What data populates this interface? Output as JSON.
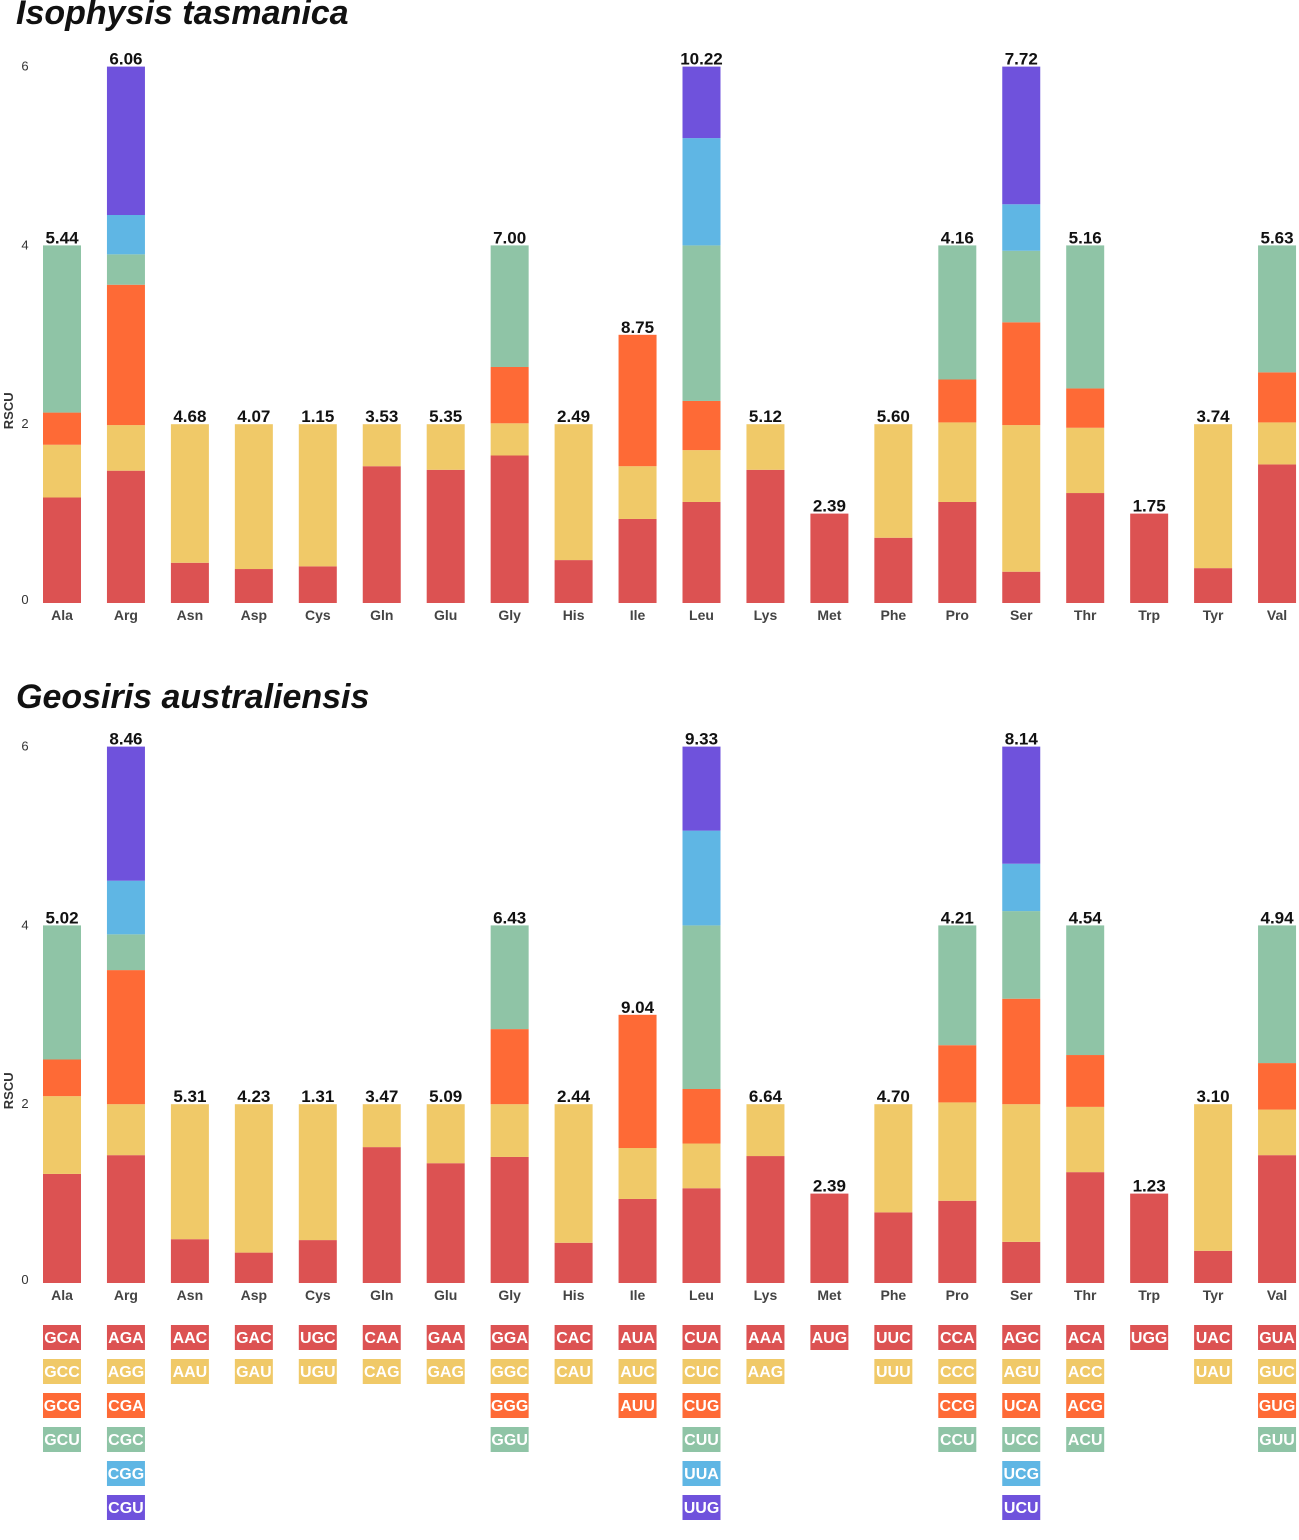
{
  "chart_data": {
    "type": "bar",
    "stacked": true,
    "ylabel": "RSCU",
    "ylim": [
      0,
      6
    ],
    "yticks": [
      0,
      2,
      4,
      6
    ],
    "colors": [
      "#dc5252",
      "#f0c968",
      "#fe6a36",
      "#8fc4a6",
      "#5fb6e4",
      "#6f52dc"
    ],
    "categories": [
      "Ala",
      "Arg",
      "Asn",
      "Asp",
      "Cys",
      "Gln",
      "Glu",
      "Gly",
      "His",
      "Ile",
      "Leu",
      "Lys",
      "Met",
      "Phe",
      "Pro",
      "Ser",
      "Thr",
      "Trp",
      "Tyr",
      "Val"
    ],
    "codons": [
      [
        "GCA",
        "GCC",
        "GCG",
        "GCU"
      ],
      [
        "AGA",
        "AGG",
        "CGA",
        "CGC",
        "CGG",
        "CGU"
      ],
      [
        "AAC",
        "AAU"
      ],
      [
        "GAC",
        "GAU"
      ],
      [
        "UGC",
        "UGU"
      ],
      [
        "CAA",
        "CAG"
      ],
      [
        "GAA",
        "GAG"
      ],
      [
        "GGA",
        "GGC",
        "GGG",
        "GGU"
      ],
      [
        "CAC",
        "CAU"
      ],
      [
        "AUA",
        "AUC",
        "AUU"
      ],
      [
        "CUA",
        "CUC",
        "CUG",
        "CUU",
        "UUA",
        "UUG"
      ],
      [
        "AAA",
        "AAG"
      ],
      [
        "AUG"
      ],
      [
        "UUC",
        "UUU"
      ],
      [
        "CCA",
        "CCC",
        "CCG",
        "CCU"
      ],
      [
        "AGC",
        "AGU",
        "UCA",
        "UCC",
        "UCG",
        "UCU"
      ],
      [
        "ACA",
        "ACC",
        "ACG",
        "ACU"
      ],
      [
        "UGG"
      ],
      [
        "UAC",
        "UAU"
      ],
      [
        "GUA",
        "GUC",
        "GUG",
        "GUU"
      ]
    ],
    "panels": [
      {
        "title": "Isophysis tasmanica",
        "labels": [
          "5.44",
          "6.06",
          "4.68",
          "4.07",
          "1.15",
          "3.53",
          "5.35",
          "7.00",
          "2.49",
          "8.75",
          "10.22",
          "5.12",
          "2.39",
          "5.60",
          "4.16",
          "7.72",
          "5.16",
          "1.75",
          "3.74",
          "5.63"
        ],
        "rscu": [
          [
            1.18,
            0.59,
            0.36,
            1.87
          ],
          [
            1.48,
            0.51,
            1.57,
            0.34,
            0.44,
            1.66
          ],
          [
            0.45,
            1.55
          ],
          [
            0.38,
            1.62
          ],
          [
            0.41,
            1.59
          ],
          [
            1.53,
            0.47
          ],
          [
            1.49,
            0.51
          ],
          [
            1.65,
            0.36,
            0.63,
            1.36
          ],
          [
            0.48,
            1.52
          ],
          [
            0.94,
            0.59,
            1.47
          ],
          [
            1.13,
            0.58,
            0.55,
            1.74,
            1.2,
            0.8
          ],
          [
            1.49,
            0.51
          ],
          [
            1.0
          ],
          [
            0.73,
            1.27
          ],
          [
            1.13,
            0.89,
            0.48,
            1.5
          ],
          [
            0.35,
            1.64,
            1.15,
            0.8,
            0.52,
            1.54
          ],
          [
            1.23,
            0.73,
            0.44,
            1.6
          ],
          [
            1.0
          ],
          [
            0.39,
            1.61
          ],
          [
            1.55,
            0.47,
            0.56,
            1.42
          ]
        ]
      },
      {
        "title": "Geosiris australiensis",
        "labels": [
          "5.02",
          "8.46",
          "5.31",
          "4.23",
          "1.31",
          "3.47",
          "5.09",
          "6.43",
          "2.44",
          "9.04",
          "9.33",
          "6.64",
          "2.39",
          "4.70",
          "4.21",
          "8.14",
          "4.54",
          "1.23",
          "3.10",
          "4.94"
        ],
        "rscu": [
          [
            1.22,
            0.87,
            0.41,
            1.5
          ],
          [
            1.43,
            0.57,
            1.5,
            0.4,
            0.6,
            1.5
          ],
          [
            0.49,
            1.51
          ],
          [
            0.34,
            1.66
          ],
          [
            0.48,
            1.52
          ],
          [
            1.52,
            0.48
          ],
          [
            1.34,
            0.66
          ],
          [
            1.41,
            0.59,
            0.84,
            1.16
          ],
          [
            0.45,
            1.55
          ],
          [
            0.94,
            0.57,
            1.49
          ],
          [
            1.06,
            0.5,
            0.61,
            1.83,
            1.06,
            0.94
          ],
          [
            1.42,
            0.58
          ],
          [
            1.0
          ],
          [
            0.79,
            1.21
          ],
          [
            0.92,
            1.1,
            0.64,
            1.34
          ],
          [
            0.46,
            1.54,
            1.18,
            0.98,
            0.53,
            1.31
          ],
          [
            1.24,
            0.73,
            0.58,
            1.45
          ],
          [
            1.0
          ],
          [
            0.36,
            1.64
          ],
          [
            1.43,
            0.51,
            0.52,
            1.54
          ]
        ]
      }
    ]
  }
}
